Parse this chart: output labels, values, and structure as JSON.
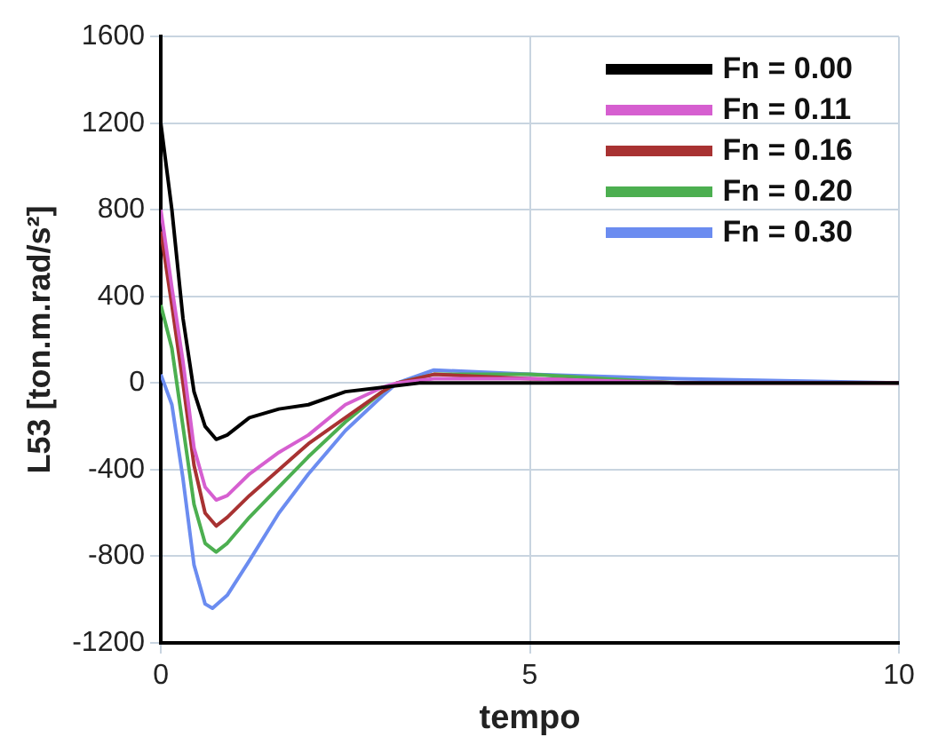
{
  "chart_data": {
    "type": "line",
    "xlabel": "tempo",
    "ylabel": "L53 [ton.m.rad/s²]",
    "xlim": [
      0,
      10
    ],
    "xticks": [
      0,
      5,
      10
    ],
    "ylim": [
      -1200,
      1600
    ],
    "yticks": [
      -1200,
      -800,
      -400,
      0,
      400,
      800,
      1200,
      1600
    ],
    "grid": true,
    "legend": "top right",
    "marker": "none",
    "line_style": "solid",
    "series": [
      {
        "name": "Fn = 0.00",
        "color": "#000000",
        "x": [
          0,
          0.15,
          0.3,
          0.45,
          0.6,
          0.75,
          0.9,
          1.2,
          1.6,
          2,
          2.5,
          3,
          3.5,
          4,
          5,
          6,
          7,
          10
        ],
        "values": [
          1200,
          800,
          300,
          -40,
          -200,
          -260,
          -240,
          -160,
          -120,
          -100,
          -40,
          -20,
          0,
          0,
          0,
          0,
          0,
          0
        ]
      },
      {
        "name": "Fn = 0.11",
        "color": "#d65fd0",
        "x": [
          0,
          0.15,
          0.3,
          0.45,
          0.6,
          0.75,
          0.9,
          1.2,
          1.6,
          2,
          2.5,
          3,
          3.2,
          3.7,
          5,
          7,
          10
        ],
        "values": [
          800,
          440,
          100,
          -300,
          -480,
          -540,
          -520,
          -420,
          -320,
          -240,
          -100,
          -20,
          0,
          20,
          20,
          0,
          0
        ]
      },
      {
        "name": "Fn = 0.16",
        "color": "#a83232",
        "x": [
          0,
          0.15,
          0.3,
          0.45,
          0.6,
          0.75,
          0.9,
          1.2,
          1.6,
          2,
          2.5,
          3,
          3.2,
          3.7,
          5,
          7,
          10
        ],
        "values": [
          700,
          360,
          0,
          -380,
          -600,
          -660,
          -620,
          -520,
          -400,
          -280,
          -160,
          -40,
          0,
          40,
          20,
          0,
          0
        ]
      },
      {
        "name": "Fn = 0.20",
        "color": "#4caf50",
        "x": [
          0,
          0.15,
          0.3,
          0.45,
          0.6,
          0.75,
          0.9,
          1.2,
          1.6,
          2,
          2.5,
          3,
          3.2,
          3.7,
          5,
          7,
          10
        ],
        "values": [
          360,
          160,
          -200,
          -560,
          -740,
          -780,
          -740,
          -620,
          -480,
          -340,
          -180,
          -40,
          0,
          40,
          40,
          0,
          0
        ]
      },
      {
        "name": "Fn = 0.30",
        "color": "#6b8cf0",
        "x": [
          0,
          0.15,
          0.3,
          0.45,
          0.6,
          0.7,
          0.9,
          1.2,
          1.6,
          2,
          2.5,
          3,
          3.2,
          3.7,
          5,
          7,
          10
        ],
        "values": [
          40,
          -100,
          -440,
          -840,
          -1020,
          -1040,
          -980,
          -820,
          -600,
          -420,
          -220,
          -60,
          0,
          60,
          40,
          20,
          0
        ]
      }
    ]
  }
}
